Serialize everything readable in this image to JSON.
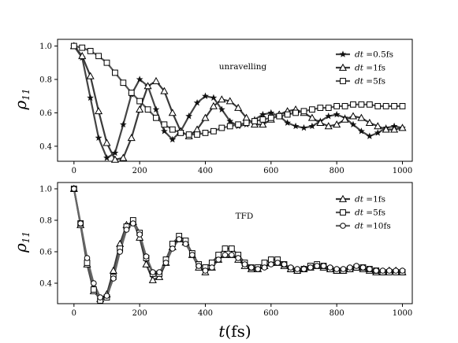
{
  "chart_data": [
    {
      "type": "line",
      "ylabel": {
        "symbol": "ρ",
        "subscript": "11"
      },
      "annotation": "unravelling",
      "xlim": [
        -50,
        1030
      ],
      "ylim": [
        0.31,
        1.04
      ],
      "xticks": [
        0,
        200,
        400,
        600,
        800,
        1000
      ],
      "yticks": [
        0.4,
        0.6,
        0.8,
        1.0
      ],
      "ytick_labels": [
        "0.4",
        "0.6",
        "0.8",
        "1.0"
      ],
      "legend_position": "top-right",
      "series": [
        {
          "name": "dt =0.5fs",
          "name_var": "dt",
          "name_rest": " =0.5fs",
          "marker": "star",
          "color": "#444444",
          "x": [
            0,
            25,
            50,
            75,
            100,
            125,
            150,
            175,
            200,
            225,
            250,
            275,
            300,
            325,
            350,
            375,
            400,
            425,
            450,
            475,
            500,
            525,
            550,
            575,
            600,
            625,
            650,
            675,
            700,
            725,
            750,
            775,
            800,
            825,
            850,
            875,
            900,
            925,
            950,
            975,
            1000
          ],
          "y": [
            1.0,
            0.93,
            0.69,
            0.45,
            0.33,
            0.36,
            0.53,
            0.71,
            0.8,
            0.76,
            0.62,
            0.49,
            0.44,
            0.49,
            0.58,
            0.66,
            0.7,
            0.69,
            0.62,
            0.55,
            0.52,
            0.53,
            0.56,
            0.59,
            0.6,
            0.58,
            0.54,
            0.52,
            0.51,
            0.52,
            0.55,
            0.58,
            0.59,
            0.57,
            0.53,
            0.49,
            0.46,
            0.48,
            0.51,
            0.52,
            0.51
          ]
        },
        {
          "name": "dt =1fs",
          "name_var": "dt",
          "name_rest": " =1fs",
          "marker": "triangle",
          "color": "#3a3a3a",
          "x": [
            0,
            25,
            50,
            75,
            100,
            125,
            150,
            175,
            200,
            225,
            250,
            275,
            300,
            325,
            350,
            375,
            400,
            425,
            450,
            475,
            500,
            525,
            550,
            575,
            600,
            625,
            650,
            675,
            700,
            725,
            750,
            775,
            800,
            825,
            850,
            875,
            900,
            925,
            950,
            975,
            1000
          ],
          "y": [
            1.0,
            0.94,
            0.82,
            0.61,
            0.42,
            0.32,
            0.33,
            0.45,
            0.62,
            0.76,
            0.79,
            0.73,
            0.6,
            0.49,
            0.46,
            0.5,
            0.57,
            0.64,
            0.68,
            0.67,
            0.63,
            0.57,
            0.53,
            0.53,
            0.56,
            0.59,
            0.61,
            0.62,
            0.6,
            0.57,
            0.54,
            0.52,
            0.53,
            0.56,
            0.58,
            0.57,
            0.54,
            0.52,
            0.5,
            0.5,
            0.51
          ]
        },
        {
          "name": "dt =5fs",
          "name_var": "dt",
          "name_rest": " =5fs",
          "marker": "square",
          "color": "#555555",
          "x": [
            0,
            25,
            50,
            75,
            100,
            125,
            150,
            175,
            200,
            225,
            250,
            275,
            300,
            325,
            350,
            375,
            400,
            425,
            450,
            475,
            500,
            525,
            550,
            575,
            600,
            625,
            650,
            675,
            700,
            725,
            750,
            775,
            800,
            825,
            850,
            875,
            900,
            925,
            950,
            975,
            1000
          ],
          "y": [
            1.0,
            0.99,
            0.97,
            0.94,
            0.9,
            0.84,
            0.78,
            0.72,
            0.67,
            0.62,
            0.57,
            0.53,
            0.5,
            0.48,
            0.47,
            0.47,
            0.48,
            0.49,
            0.51,
            0.52,
            0.53,
            0.54,
            0.55,
            0.56,
            0.57,
            0.58,
            0.59,
            0.6,
            0.61,
            0.62,
            0.63,
            0.63,
            0.64,
            0.64,
            0.65,
            0.65,
            0.65,
            0.64,
            0.64,
            0.64,
            0.64
          ]
        }
      ]
    },
    {
      "type": "line",
      "ylabel": {
        "symbol": "ρ",
        "subscript": "11"
      },
      "annotation": "TFD",
      "xlim": [
        -50,
        1030
      ],
      "ylim": [
        0.27,
        1.04
      ],
      "xticks": [
        0,
        200,
        400,
        600,
        800,
        1000
      ],
      "yticks": [
        0.4,
        0.6,
        0.8,
        1.0
      ],
      "ytick_labels": [
        "0.4",
        "0.6",
        "0.8",
        "1.0"
      ],
      "legend_position": "top-right",
      "xlabel": {
        "var": "t",
        "rest": "(fs)"
      },
      "series": [
        {
          "name": "dt =1fs",
          "name_var": "dt",
          "name_rest": " =1fs",
          "marker": "triangle",
          "color": "#3a3a3a",
          "x": [
            0,
            20,
            40,
            60,
            80,
            100,
            120,
            140,
            160,
            180,
            200,
            220,
            240,
            260,
            280,
            300,
            320,
            340,
            360,
            380,
            400,
            420,
            440,
            460,
            480,
            500,
            520,
            540,
            560,
            580,
            600,
            620,
            640,
            660,
            680,
            700,
            720,
            740,
            760,
            780,
            800,
            820,
            840,
            860,
            880,
            900,
            920,
            940,
            960,
            980,
            1000
          ],
          "y": [
            1.0,
            0.77,
            0.52,
            0.35,
            0.3,
            0.33,
            0.48,
            0.65,
            0.77,
            0.79,
            0.69,
            0.52,
            0.42,
            0.44,
            0.53,
            0.63,
            0.68,
            0.66,
            0.58,
            0.5,
            0.47,
            0.5,
            0.55,
            0.58,
            0.58,
            0.55,
            0.51,
            0.49,
            0.49,
            0.51,
            0.53,
            0.53,
            0.51,
            0.49,
            0.48,
            0.49,
            0.5,
            0.51,
            0.5,
            0.49,
            0.48,
            0.48,
            0.49,
            0.5,
            0.49,
            0.48,
            0.47,
            0.47,
            0.48,
            0.48,
            0.47
          ]
        },
        {
          "name": "dt =5fs",
          "name_var": "dt",
          "name_rest": " =5fs",
          "marker": "square",
          "color": "#555555",
          "x": [
            0,
            20,
            40,
            60,
            80,
            100,
            120,
            140,
            160,
            180,
            200,
            220,
            240,
            260,
            280,
            300,
            320,
            340,
            360,
            380,
            400,
            420,
            440,
            460,
            480,
            500,
            520,
            540,
            560,
            580,
            600,
            620,
            640,
            660,
            680,
            700,
            720,
            740,
            760,
            780,
            800,
            820,
            840,
            860,
            880,
            900,
            920,
            940,
            960,
            980,
            1000
          ],
          "y": [
            1.0,
            0.78,
            0.53,
            0.36,
            0.29,
            0.31,
            0.44,
            0.62,
            0.76,
            0.8,
            0.72,
            0.56,
            0.46,
            0.46,
            0.55,
            0.65,
            0.7,
            0.67,
            0.59,
            0.52,
            0.5,
            0.53,
            0.58,
            0.62,
            0.62,
            0.58,
            0.53,
            0.5,
            0.5,
            0.53,
            0.55,
            0.55,
            0.52,
            0.49,
            0.48,
            0.49,
            0.51,
            0.52,
            0.51,
            0.49,
            0.48,
            0.48,
            0.49,
            0.5,
            0.5,
            0.49,
            0.48,
            0.47,
            0.47,
            0.47,
            0.47
          ]
        },
        {
          "name": "dt =10fs",
          "name_var": "dt",
          "name_rest": " =10fs",
          "marker": "circle",
          "color": "#666666",
          "x": [
            0,
            20,
            40,
            60,
            80,
            100,
            120,
            140,
            160,
            180,
            200,
            220,
            240,
            260,
            280,
            300,
            320,
            340,
            360,
            380,
            400,
            420,
            440,
            460,
            480,
            500,
            520,
            540,
            560,
            580,
            600,
            620,
            640,
            660,
            680,
            700,
            720,
            740,
            760,
            780,
            800,
            820,
            840,
            860,
            880,
            900,
            920,
            940,
            960,
            980,
            1000
          ],
          "y": [
            1.0,
            0.78,
            0.56,
            0.4,
            0.31,
            0.32,
            0.43,
            0.6,
            0.74,
            0.78,
            0.71,
            0.57,
            0.47,
            0.47,
            0.53,
            0.62,
            0.68,
            0.65,
            0.58,
            0.51,
            0.48,
            0.5,
            0.55,
            0.58,
            0.58,
            0.56,
            0.52,
            0.5,
            0.49,
            0.5,
            0.52,
            0.53,
            0.52,
            0.5,
            0.49,
            0.49,
            0.5,
            0.51,
            0.51,
            0.5,
            0.49,
            0.49,
            0.5,
            0.51,
            0.5,
            0.49,
            0.48,
            0.48,
            0.48,
            0.48,
            0.48
          ]
        }
      ]
    }
  ]
}
